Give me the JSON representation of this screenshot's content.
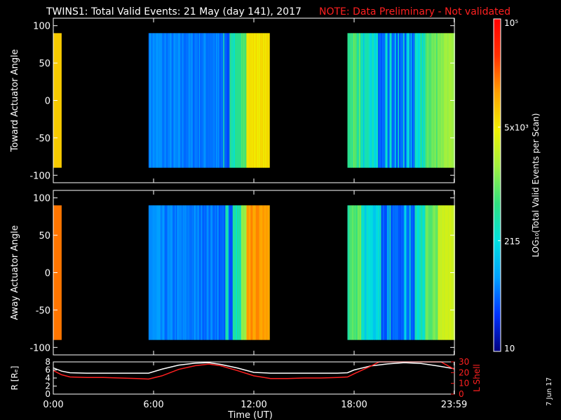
{
  "header": {
    "title": "TWINS1: Total Valid Events: 21 May (day 141), 2017",
    "note": "NOTE: Data Preliminary - Not validated"
  },
  "footer": {
    "date_stamp": "7 Jun 17"
  },
  "colorbar": {
    "label": "LOG₁₀(Total Valid Events per Scan)",
    "ticks": [
      "10",
      "215",
      "5x10³",
      "10⁵"
    ],
    "tick_values": [
      10,
      215,
      5000,
      100000
    ],
    "colors": [
      "#000080",
      "#0033ff",
      "#00a0ff",
      "#00e0e0",
      "#30e080",
      "#a0f040",
      "#f0f000",
      "#ffa000",
      "#ff3000",
      "#ff0000"
    ]
  },
  "chart_data": [
    {
      "type": "heatmap",
      "panel": "toward",
      "ylabel": "Toward Actuator Angle",
      "xlabel": "",
      "xlim": [
        0,
        24
      ],
      "ylim": [
        -110,
        110
      ],
      "y_ticks": [
        "100",
        "50",
        "0",
        "-50",
        "-100"
      ],
      "y_tick_values": [
        100,
        50,
        0,
        -50,
        -100
      ],
      "data_range": [
        -90,
        90
      ],
      "blocks": [
        {
          "start": 0.0,
          "end": 0.5,
          "level": 0.72,
          "description": "yellow"
        },
        {
          "start": 5.7,
          "end": 12.9,
          "profile": "blue rising to yellow near end"
        },
        {
          "start": 17.6,
          "end": 24.0,
          "profile": "green/cyan, blue mid, green end"
        }
      ]
    },
    {
      "type": "heatmap",
      "panel": "away",
      "ylabel": "Away Actuator Angle",
      "xlabel": "",
      "xlim": [
        0,
        24
      ],
      "ylim": [
        -110,
        110
      ],
      "y_ticks": [
        "100",
        "50",
        "0",
        "-50",
        "-100"
      ],
      "y_tick_values": [
        100,
        50,
        0,
        -50,
        -100
      ],
      "data_range": [
        -90,
        90
      ],
      "blocks": [
        {
          "start": 0.0,
          "end": 0.5,
          "level": 0.82,
          "description": "orange"
        },
        {
          "start": 5.7,
          "end": 12.9,
          "profile": "blue rising to orange near end"
        },
        {
          "start": 17.6,
          "end": 24.0,
          "profile": "green/cyan, blue mid, yellow end"
        }
      ]
    },
    {
      "type": "line",
      "panel": "orbit",
      "xlabel": "Time (UT)",
      "ylabel_left": "R [Rₑ]",
      "ylabel_right": "L Shell",
      "x_ticks": [
        "0:00",
        "6:00",
        "12:00",
        "18:00",
        "23:59"
      ],
      "x_tick_values": [
        0,
        6,
        12,
        18,
        23.98
      ],
      "left_ylim": [
        0,
        8
      ],
      "left_ticks": [
        "8",
        "6",
        "4",
        "2",
        "0"
      ],
      "left_tick_values": [
        8,
        6,
        4,
        2,
        0
      ],
      "right_ylim": [
        0,
        30
      ],
      "right_ticks": [
        "30",
        "20",
        "10",
        "0"
      ],
      "right_tick_values": [
        30,
        20,
        10,
        0
      ],
      "series": [
        {
          "name": "R",
          "color": "#ffffff",
          "axis": "left",
          "x": [
            0,
            0.5,
            1,
            2,
            3,
            4,
            5,
            5.7,
            6.5,
            7.5,
            8.5,
            9.3,
            10,
            11,
            12,
            13,
            14,
            15,
            16,
            17,
            17.6,
            18,
            19,
            20,
            21,
            22,
            23,
            24
          ],
          "y": [
            6.5,
            5.7,
            5.3,
            5.2,
            5.2,
            5.2,
            5.2,
            5.2,
            6.2,
            7.2,
            7.7,
            7.8,
            7.4,
            6.5,
            5.4,
            5.2,
            5.2,
            5.2,
            5.2,
            5.2,
            5.3,
            6.0,
            7.0,
            7.5,
            7.8,
            7.6,
            7.0,
            6.3
          ]
        },
        {
          "name": "L Shell",
          "color": "#ff2020",
          "axis": "right",
          "x": [
            0,
            0.5,
            1,
            2,
            3,
            4,
            5,
            5.7,
            6.5,
            7.5,
            8.5,
            9.3,
            10,
            11,
            12,
            13,
            14,
            15,
            16,
            17,
            17.6,
            18,
            19,
            19.5,
            23.2,
            24
          ],
          "y": [
            22,
            18,
            16,
            15.5,
            15.5,
            15,
            14.5,
            14,
            17,
            23,
            26.5,
            28,
            26.5,
            22,
            17,
            14.5,
            14.5,
            15,
            15,
            15.5,
            16,
            19,
            26,
            31,
            31,
            23
          ]
        }
      ]
    }
  ]
}
